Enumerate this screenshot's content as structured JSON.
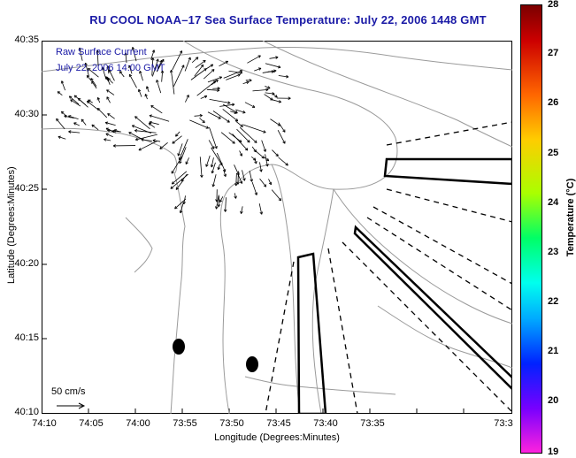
{
  "title": "RU COOL  NOAA–17  Sea Surface Temperature:  July 22, 2006 1448 GMT",
  "legend": {
    "line1": "Raw Surface Current",
    "line2": "July 22, 2006 14:00 GMT"
  },
  "scale": {
    "label": "50 cm/s"
  },
  "axes": {
    "x_label": "Longitude (Degrees:Minutes)",
    "y_label": "Latitude (Degrees:Minutes)",
    "x_ticks": [
      "74:10",
      "74:05",
      "74:00",
      "73:55",
      "73:50",
      "73:45",
      "73:40",
      "73:35",
      "73:3"
    ],
    "y_ticks": [
      "40:35",
      "40:30",
      "40:25",
      "40:20",
      "40:15",
      "40:10"
    ]
  },
  "colorbar": {
    "label": "Temperature (°C)",
    "ticks": [
      "28",
      "27",
      "26",
      "25",
      "24",
      "23",
      "22",
      "21",
      "20",
      "19"
    ],
    "range": [
      19,
      28
    ]
  },
  "colors": {
    "title_text": "#1a1aa6",
    "land_outline": "#9a9a9a",
    "vectors": "#000000",
    "ocean": "#ffffff"
  }
}
